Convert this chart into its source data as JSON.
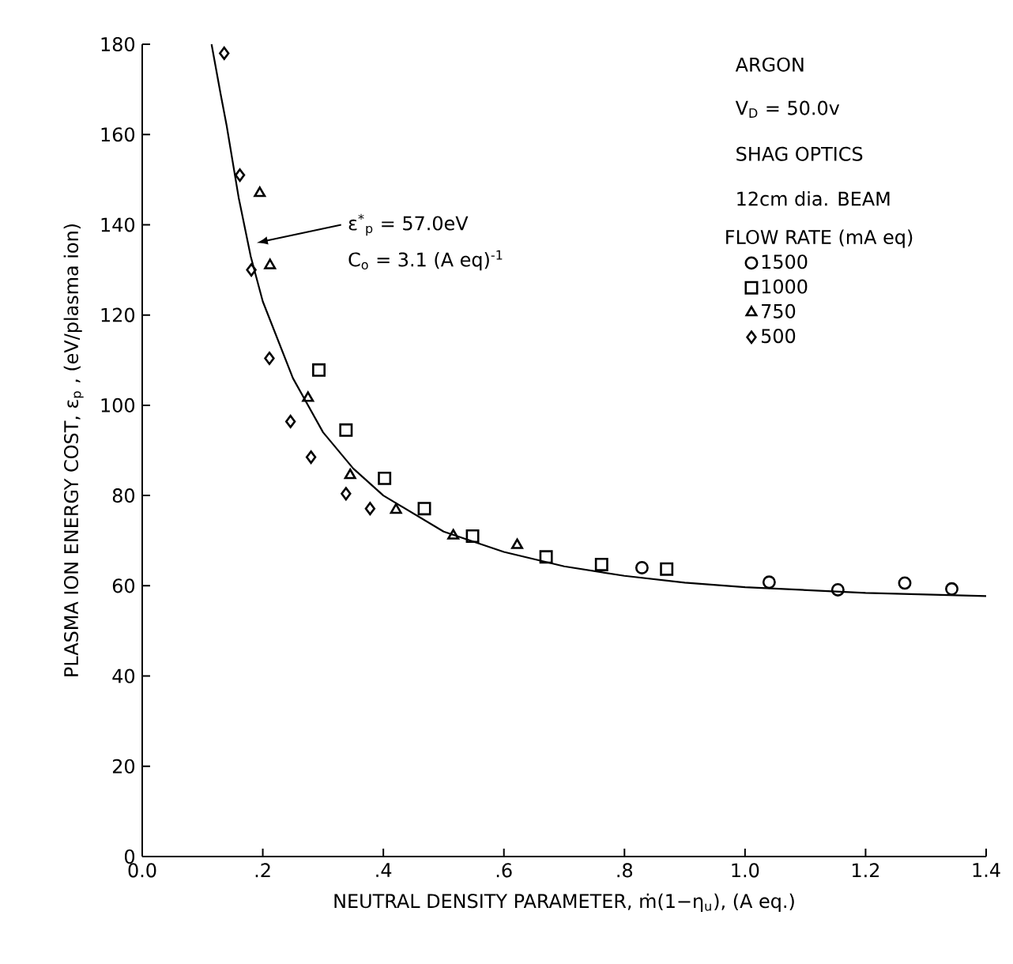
{
  "chart_data": {
    "type": "scatter",
    "xlabel": "NEUTRAL DENSITY PARAMETER, ṁ(1−η$_{u}$),  (A eq.)",
    "ylabel": "PLASMA ION ENERGY COST, ε$_{p}$ ,  (eV/plasma ion)",
    "legend_title": "FLOW RATE (mA eq)",
    "annotations": [
      "ARGON",
      "V$_{D}$ = 50.0v",
      "SHAG OPTICS",
      "12cm dia. BEAM",
      {
        "text": "ε$^{*}$$_{p}$ = 57.0eV",
        "x": 0.19,
        "y": 136
      },
      "C$_{o}$ =  3.1 (A eq)$^{-1}$"
    ],
    "xlim": [
      0,
      1.4
    ],
    "ylim": [
      0,
      180
    ],
    "xticks": [
      {
        "value": 0,
        "label": "0.0"
      },
      {
        "value": 0.2,
        "label": ".2"
      },
      {
        "value": 0.4,
        "label": ".4"
      },
      {
        "value": 0.6,
        "label": ".6"
      },
      {
        "value": 0.8,
        "label": ".8"
      },
      {
        "value": 1.0,
        "label": "1.0"
      },
      {
        "value": 1.2,
        "label": "1.2"
      },
      {
        "value": 1.4,
        "label": "1.4"
      }
    ],
    "yticks": [
      0,
      20,
      40,
      60,
      80,
      100,
      120,
      140,
      160,
      180
    ],
    "grid": false,
    "legend": "right",
    "series": [
      {
        "name": "1500",
        "color": "#000000",
        "marker": "circle",
        "x": [
          0.829,
          1.04,
          1.154,
          1.265,
          1.343
        ],
        "values": [
          64.0,
          60.8,
          59.1,
          60.6,
          59.3
        ]
      },
      {
        "name": "1000",
        "color": "#000000",
        "marker": "square",
        "x": [
          0.293,
          0.338,
          0.402,
          0.468,
          0.548,
          0.67,
          0.762,
          0.87
        ],
        "values": [
          107.8,
          94.5,
          83.8,
          77.1,
          71.0,
          66.4,
          64.7,
          63.7
        ]
      },
      {
        "name": "750",
        "color": "#000000",
        "marker": "triangle",
        "x": [
          0.195,
          0.212,
          0.275,
          0.345,
          0.421,
          0.516,
          0.622
        ],
        "values": [
          147,
          131,
          101.6,
          84.5,
          76.8,
          71.1,
          69.0
        ]
      },
      {
        "name": "500",
        "color": "#000000",
        "marker": "diamond",
        "x": [
          0.136,
          0.162,
          0.181,
          0.211,
          0.246,
          0.28,
          0.338,
          0.378
        ],
        "values": [
          178,
          151,
          130,
          110.4,
          96.4,
          88.5,
          80.4,
          77.1
        ]
      },
      {
        "type": "line",
        "color": "#000000",
        "marker": "none",
        "line_style": "solid",
        "x": [
          0.115,
          0.13,
          0.14,
          0.16,
          0.18,
          0.2,
          0.25,
          0.3,
          0.35,
          0.4,
          0.5,
          0.6,
          0.7,
          0.8,
          0.9,
          1.0,
          1.2,
          1.4
        ],
        "values": [
          180,
          169,
          162,
          146,
          133,
          123,
          106,
          94,
          86,
          80,
          72,
          67.5,
          64.3,
          62.2,
          60.7,
          59.7,
          58.4,
          57.7
        ]
      }
    ]
  }
}
